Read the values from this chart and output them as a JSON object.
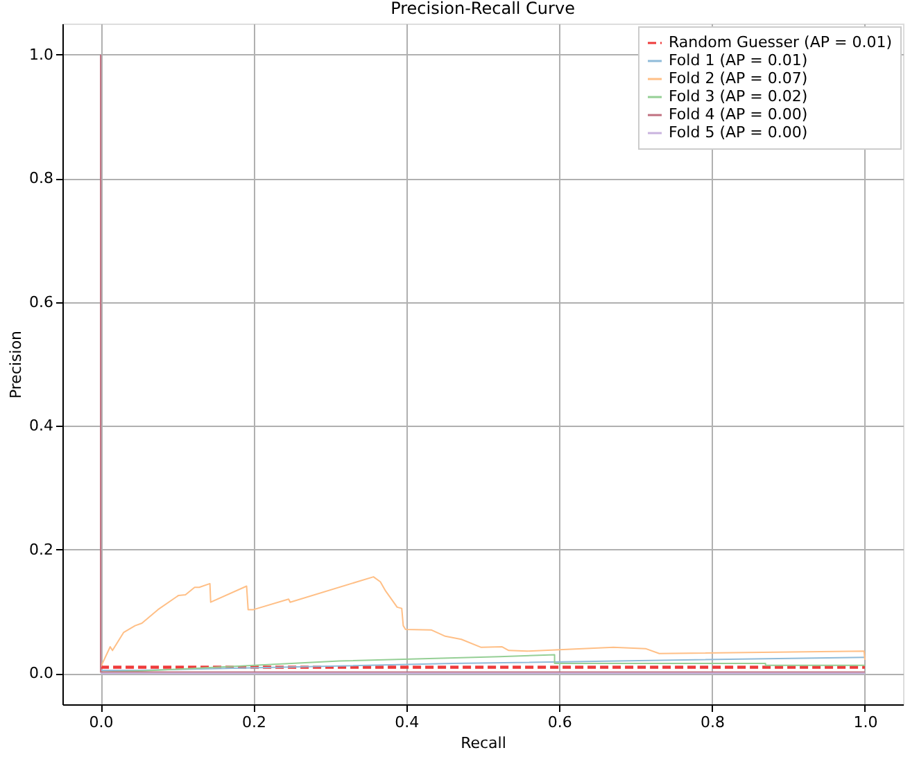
{
  "chart_data": {
    "type": "line",
    "title": "Precision-Recall Curve",
    "xlabel": "Recall",
    "ylabel": "Precision",
    "xlim": [
      -0.05,
      1.05
    ],
    "ylim": [
      -0.05,
      1.05
    ],
    "xticks": [
      {
        "value": 0,
        "label": "0.0"
      },
      0.2,
      0.4,
      0.6,
      0.8,
      {
        "value": 1,
        "label": "1.0"
      }
    ],
    "yticks": [
      {
        "value": 0,
        "label": "0.0"
      },
      0.2,
      0.4,
      0.6,
      0.8,
      {
        "value": 1,
        "label": "1.0"
      }
    ],
    "grid": true,
    "legend": "top right",
    "marker": "none",
    "series": [
      {
        "name": "Random Guesser (AP = 0.01)",
        "color": "#ee3b3b",
        "line_style": "dashed",
        "x": [
          0,
          1
        ],
        "values": [
          0.01,
          0.01
        ]
      },
      {
        "name": "Fold 1 (AP = 0.01)",
        "color": "#8fbbd9",
        "line_style": "solid",
        "x": [
          0,
          0.05,
          0.46,
          1.0
        ],
        "values": [
          0.005,
          0.005,
          0.016,
          0.026
        ]
      },
      {
        "name": "Fold 2 (AP = 0.07)",
        "color": "#ffbf86",
        "line_style": "solid",
        "x": [
          0,
          0.0125,
          0.0155,
          0.03,
          0.045,
          0.054,
          0.075,
          0.102,
          0.111,
          0.123,
          0.129,
          0.143,
          0.144,
          0.191,
          0.193,
          0.2,
          0.246,
          0.248,
          0.357,
          0.366,
          0.373,
          0.388,
          0.394,
          0.396,
          0.399,
          0.433,
          0.451,
          0.472,
          0.498,
          0.525,
          0.534,
          0.558,
          0.671,
          0.713,
          0.731,
          0.999,
          1.0
        ],
        "values": [
          0.01,
          0.043,
          0.037,
          0.066,
          0.077,
          0.081,
          0.103,
          0.126,
          0.127,
          0.139,
          0.139,
          0.145,
          0.115,
          0.141,
          0.103,
          0.103,
          0.12,
          0.115,
          0.156,
          0.148,
          0.133,
          0.107,
          0.105,
          0.077,
          0.071,
          0.07,
          0.06,
          0.055,
          0.042,
          0.043,
          0.037,
          0.036,
          0.042,
          0.04,
          0.032,
          0.036,
          0.022
        ]
      },
      {
        "name": "Fold 3 (AP = 0.02)",
        "color": "#95cf95",
        "line_style": "solid",
        "x": [
          0,
          0.057,
          0.312,
          0.522,
          0.594,
          0.594,
          0.87,
          0.87,
          1.0
        ],
        "values": [
          0.002,
          0.004,
          0.02,
          0.027,
          0.03,
          0.016,
          0.016,
          0.013,
          0.013
        ]
      },
      {
        "name": "Fold 4 (AP = 0.00)",
        "color": "#c07080",
        "line_style": "solid",
        "x": [
          0,
          0,
          1.0
        ],
        "values": [
          1.0,
          0.002,
          0.002
        ]
      },
      {
        "name": "Fold 5 (AP = 0.00)",
        "color": "#c9b3de",
        "line_style": "solid",
        "x": [
          0,
          1.0
        ],
        "values": [
          0.0,
          0.0
        ]
      }
    ]
  }
}
